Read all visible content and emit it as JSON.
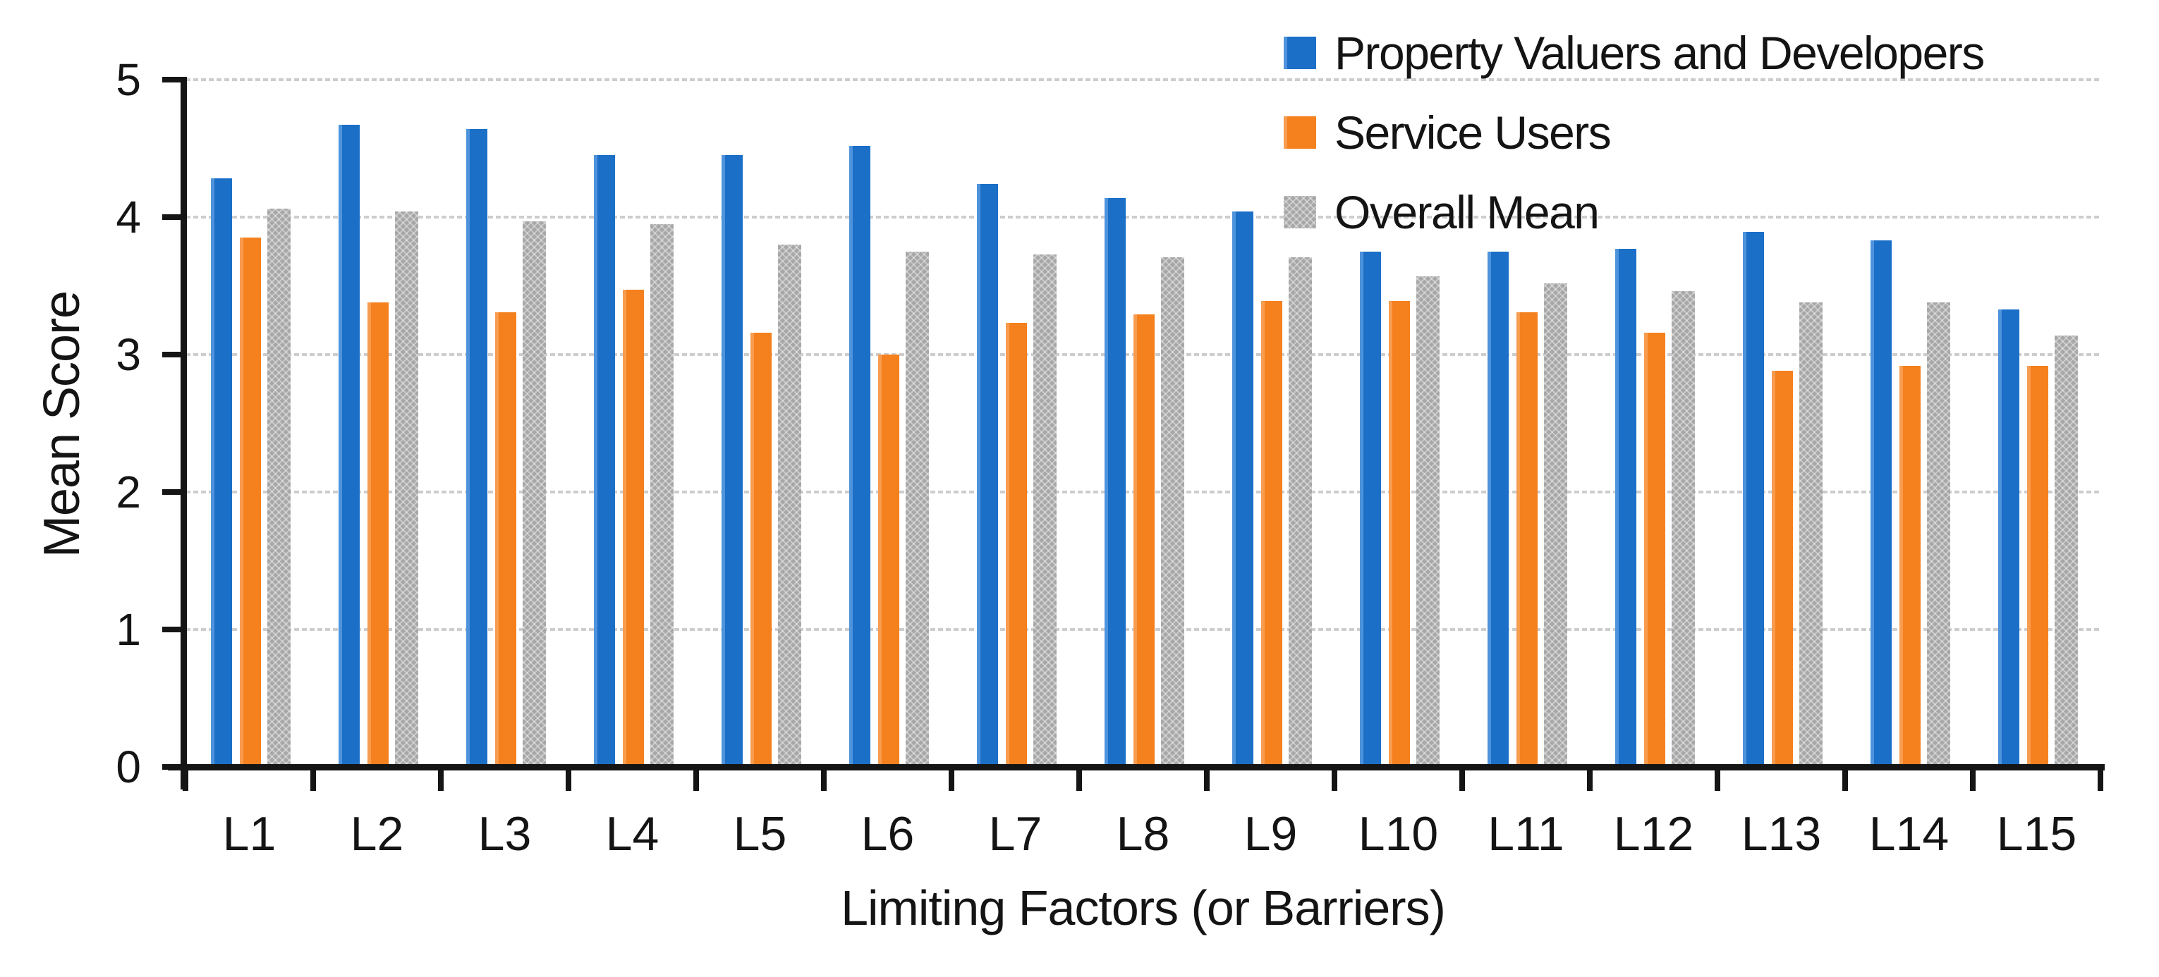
{
  "chart_data": {
    "type": "bar",
    "title": "",
    "xlabel": "Limiting Factors (or Barriers)",
    "ylabel": "Mean Score",
    "ylim": [
      0,
      5
    ],
    "yticks": [
      0,
      1,
      2,
      3,
      4,
      5
    ],
    "grid": true,
    "legend_position": "top-right",
    "categories": [
      "L1",
      "L2",
      "L3",
      "L4",
      "L5",
      "L6",
      "L7",
      "L8",
      "L9",
      "L10",
      "L11",
      "L12",
      "L13",
      "L14",
      "L15"
    ],
    "series": [
      {
        "name": "Property Valuers and Developers",
        "key": "property-valuers-and-developers",
        "color": "#1B6FC7",
        "values": [
          4.28,
          4.67,
          4.64,
          4.45,
          4.45,
          4.52,
          4.24,
          4.14,
          4.04,
          3.75,
          3.75,
          3.77,
          3.89,
          3.83,
          3.33
        ]
      },
      {
        "name": "Service Users",
        "key": "service-users",
        "color": "#F5801E",
        "values": [
          3.85,
          3.38,
          3.31,
          3.47,
          3.16,
          3.0,
          3.23,
          3.29,
          3.39,
          3.39,
          3.31,
          3.16,
          2.88,
          2.92,
          2.92
        ]
      },
      {
        "name": "Overall Mean",
        "key": "overall-mean",
        "color": "#A7A7A7",
        "texture": "crosshatch",
        "values": [
          4.06,
          4.04,
          3.97,
          3.95,
          3.8,
          3.75,
          3.73,
          3.71,
          3.71,
          3.57,
          3.52,
          3.46,
          3.38,
          3.38,
          3.14
        ]
      }
    ]
  },
  "colors": {
    "axis": "#151515",
    "gridline": "#CDCDCD",
    "text": "#141414",
    "background": "#FFFFFF"
  }
}
